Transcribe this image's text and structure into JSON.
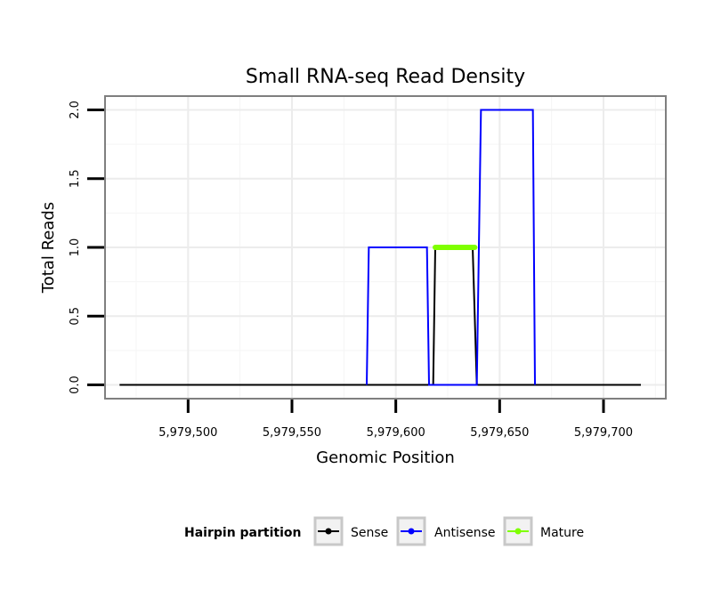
{
  "chart_data": {
    "type": "line",
    "title": "Small RNA-seq Read Density",
    "xlabel": "Genomic Position",
    "ylabel": "Total Reads",
    "xlim": [
      5979460,
      5979730
    ],
    "ylim": [
      -0.1,
      2.1
    ],
    "x_ticks": [
      5979500,
      5979550,
      5979600,
      5979650,
      5979700
    ],
    "x_tick_labels": [
      "5,979,500",
      "5,979,550",
      "5,979,600",
      "5,979,650",
      "5,979,700"
    ],
    "y_ticks": [
      0,
      0.5,
      1,
      1.5,
      2
    ],
    "y_tick_labels": [
      "0.0",
      "0.5",
      "1.0",
      "1.5",
      "2.0"
    ],
    "grid": true,
    "legend": {
      "title": "Hairpin partition",
      "position": "bottom"
    },
    "series": [
      {
        "name": "Sense",
        "color": "#000000",
        "points": [
          [
            5979467,
            0
          ],
          [
            5979618,
            0
          ],
          [
            5979619,
            1
          ],
          [
            5979637,
            1
          ],
          [
            5979639,
            0
          ],
          [
            5979718,
            0
          ]
        ]
      },
      {
        "name": "Antisense",
        "color": "#0000ff",
        "points": [
          [
            5979586,
            0
          ],
          [
            5979587,
            1
          ],
          [
            5979615,
            1
          ],
          [
            5979616,
            0
          ],
          [
            5979639,
            0
          ],
          [
            5979641,
            2
          ],
          [
            5979666,
            2
          ],
          [
            5979667,
            0
          ]
        ]
      },
      {
        "name": "Mature",
        "color": "#7fff00",
        "points": [
          [
            5979619,
            1
          ],
          [
            5979638,
            1
          ]
        ]
      }
    ]
  }
}
